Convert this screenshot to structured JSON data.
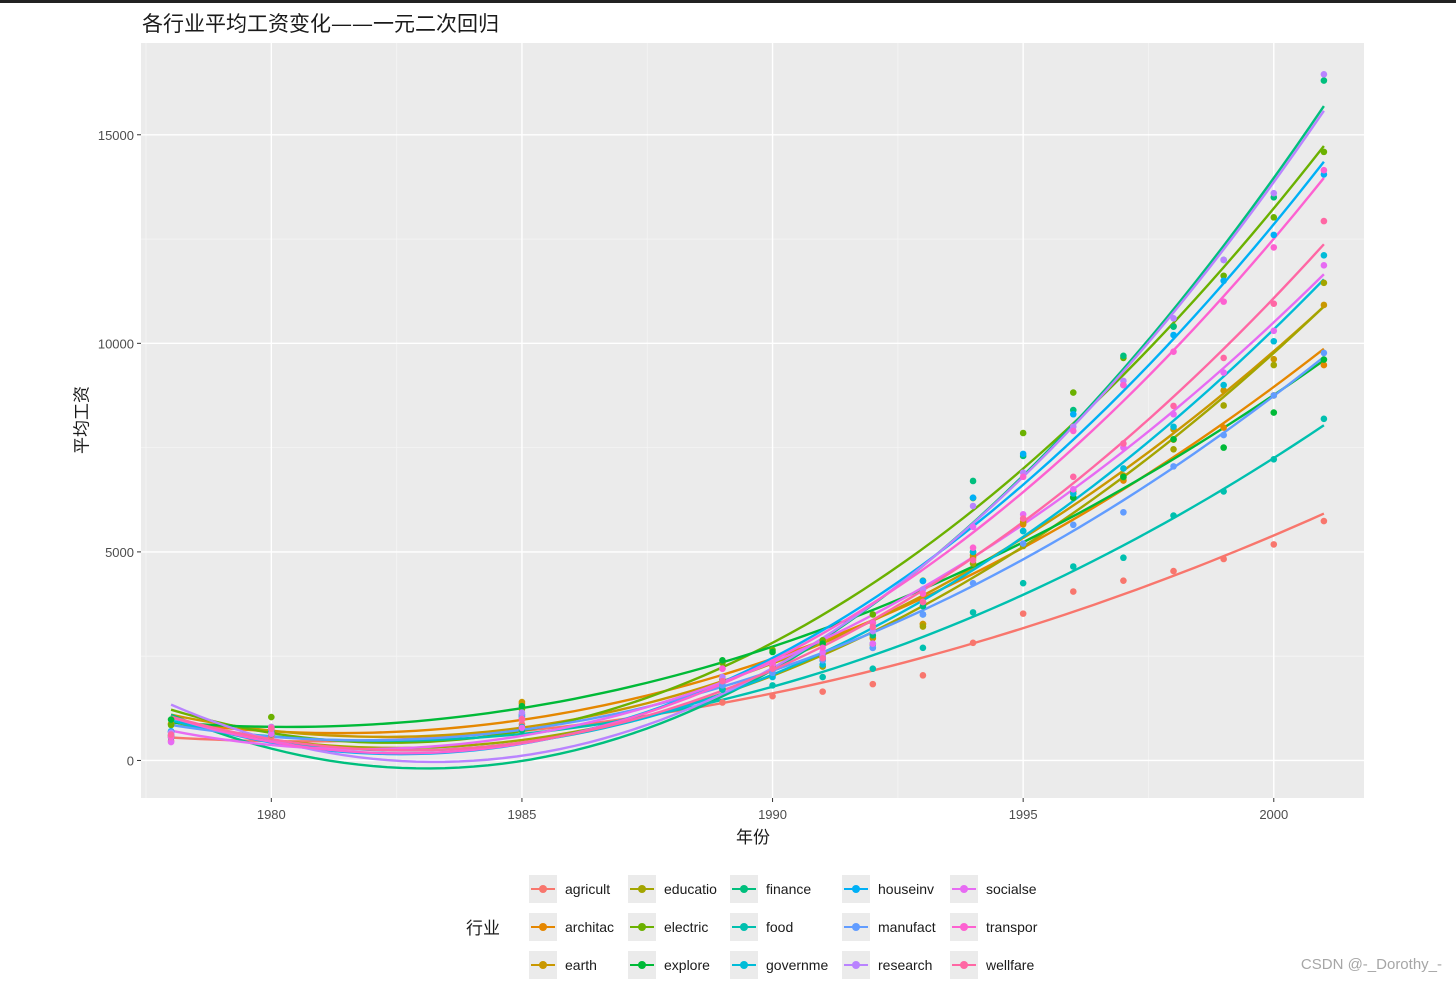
{
  "chart_data": {
    "type": "scatter",
    "title": "各行业平均工资变化——一元二次回归",
    "xlabel": "年份",
    "ylabel": "平均工资",
    "xlim": [
      1977.4,
      2001.8
    ],
    "ylim": [
      -900,
      17200
    ],
    "x_ticks": [
      1980,
      1985,
      1990,
      1995,
      2000
    ],
    "y_ticks": [
      0,
      5000,
      10000,
      15000
    ],
    "grid": true,
    "fit": "quadratic",
    "legend": {
      "title": "行业",
      "position": "bottom"
    },
    "x": [
      1978,
      1980,
      1985,
      1989,
      1990,
      1991,
      1992,
      1993,
      1994,
      1995,
      1996,
      1997,
      1998,
      1999,
      2000,
      2001
    ],
    "series": [
      {
        "name": "agricult",
        "color": "#F8766D",
        "values": [
          470,
          580,
          870,
          1390,
          1540,
          1650,
          1830,
          2040,
          2820,
          3520,
          4050,
          4310,
          4540,
          4830,
          5180,
          5740
        ]
      },
      {
        "name": "architac",
        "color": "#E58700",
        "values": [
          870,
          760,
          1360,
          1940,
          2260,
          2440,
          2930,
          3270,
          4860,
          5660,
          6300,
          6710,
          7690,
          7980,
          8750,
          9480
        ]
      },
      {
        "name": "earth",
        "color": "#C99800",
        "values": [
          880,
          770,
          1400,
          1940,
          2310,
          2510,
          2940,
          3270,
          4920,
          5720,
          6450,
          6830,
          7940,
          8870,
          9620,
          10920
        ]
      },
      {
        "name": "educatio",
        "color": "#A3A500",
        "values": [
          580,
          670,
          1090,
          1720,
          2050,
          2250,
          2780,
          3210,
          4720,
          5140,
          6310,
          6780,
          7460,
          8510,
          9480,
          11450
        ]
      },
      {
        "name": "electric",
        "color": "#6BB100",
        "values": [
          850,
          1040,
          1230,
          2340,
          2650,
          2880,
          3500,
          4310,
          6290,
          7850,
          8820,
          9650,
          10410,
          11620,
          13020,
          14590
        ]
      },
      {
        "name": "explore",
        "color": "#00BA38",
        "values": [
          980,
          800,
          1300,
          2400,
          2600,
          2800,
          3300,
          3800,
          5000,
          5500,
          6300,
          6800,
          7700,
          7500,
          8340,
          9610
        ]
      },
      {
        "name": "finance",
        "color": "#00BF7D",
        "values": [
          610,
          630,
          720,
          1700,
          2100,
          2400,
          3000,
          3700,
          6700,
          7300,
          8400,
          9700,
          10400,
          12000,
          13500,
          16300
        ]
      },
      {
        "name": "food",
        "color": "#00C0AF",
        "values": [
          680,
          700,
          800,
          1700,
          1800,
          2000,
          2200,
          2700,
          3550,
          4250,
          4650,
          4860,
          5870,
          6450,
          7220,
          8190
        ]
      },
      {
        "name": "governme",
        "color": "#00BCD8",
        "values": [
          550,
          720,
          1000,
          1800,
          2000,
          2300,
          2700,
          3500,
          5000,
          5500,
          6400,
          7000,
          8000,
          9000,
          10050,
          12110
        ]
      },
      {
        "name": "houseinv",
        "color": "#00B0F6",
        "values": [
          700,
          750,
          1050,
          1900,
          2100,
          2500,
          2800,
          4300,
          6300,
          7350,
          8300,
          9000,
          10200,
          11500,
          12600,
          14050
        ]
      },
      {
        "name": "manufact",
        "color": "#619CFF",
        "values": [
          600,
          750,
          1100,
          1800,
          2100,
          2400,
          2700,
          3500,
          4250,
          5200,
          5650,
          5950,
          7050,
          7800,
          8750,
          9770
        ]
      },
      {
        "name": "research",
        "color": "#B983FF",
        "values": [
          670,
          800,
          1150,
          2000,
          2300,
          2500,
          3100,
          4100,
          6100,
          6900,
          8000,
          9100,
          10600,
          12000,
          13600,
          16450
        ]
      },
      {
        "name": "socialse",
        "color": "#E76BF3",
        "values": [
          440,
          640,
          780,
          2200,
          2300,
          2600,
          2800,
          3800,
          5600,
          5900,
          6500,
          7500,
          8300,
          9300,
          10300,
          11870
        ]
      },
      {
        "name": "transpor",
        "color": "#FD61D1",
        "values": [
          560,
          790,
          1000,
          2200,
          2350,
          2700,
          3300,
          4000,
          5100,
          6800,
          7900,
          9000,
          9800,
          11000,
          12300,
          14150
        ]
      },
      {
        "name": "wellfare",
        "color": "#FF67A4",
        "values": [
          620,
          760,
          980,
          1900,
          2200,
          2450,
          3200,
          3800,
          4800,
          5800,
          6800,
          7600,
          8500,
          9650,
          10950,
          12930
        ]
      }
    ]
  },
  "watermark": "CSDN @-_Dorothy_-"
}
